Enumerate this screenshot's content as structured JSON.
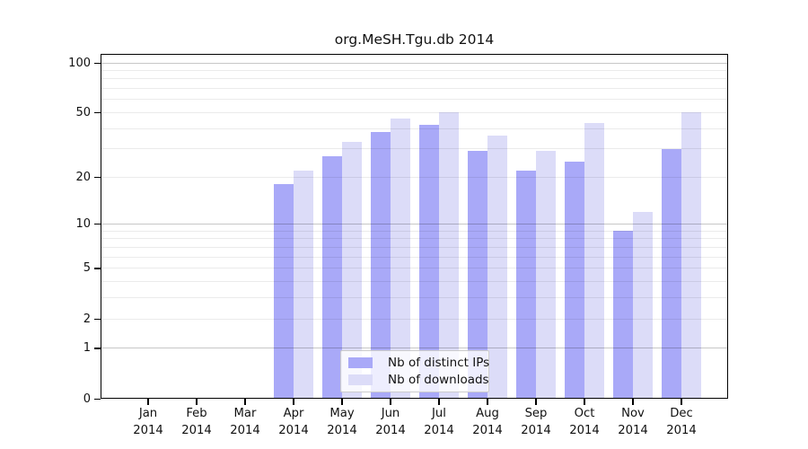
{
  "chart_data": {
    "type": "bar",
    "title": "org.MeSH.Tgu.db 2014",
    "categories": [
      "Jan",
      "Feb",
      "Mar",
      "Apr",
      "May",
      "Jun",
      "Jul",
      "Aug",
      "Sep",
      "Oct",
      "Nov",
      "Dec"
    ],
    "year_label": "2014",
    "series": [
      {
        "name": "Nb of distinct IPs",
        "color": "#a9a9f8",
        "values": [
          0,
          0,
          0,
          18,
          27,
          38,
          42,
          29,
          22,
          25,
          9,
          30
        ]
      },
      {
        "name": "Nb of downloads",
        "color": "#dcdcf8",
        "values": [
          0,
          0,
          0,
          22,
          33,
          46,
          50,
          36,
          29,
          43,
          12,
          50
        ]
      }
    ],
    "yscale": "log1p",
    "ylim": [
      0,
      113
    ],
    "yticks": [
      100,
      50,
      20,
      10,
      5,
      2,
      1,
      0
    ],
    "major_gridlines": [
      1,
      10,
      100
    ],
    "minor_gridlines": [
      2,
      3,
      4,
      5,
      6,
      7,
      8,
      9,
      20,
      30,
      40,
      50,
      60,
      70,
      80,
      90
    ],
    "grid": "on",
    "legend_position": "bottom-center",
    "xlabel": "",
    "ylabel": ""
  }
}
